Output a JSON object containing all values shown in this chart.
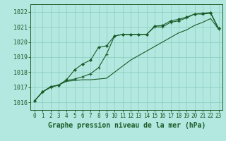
{
  "title": "Graphe pression niveau de la mer (hPa)",
  "bg_color": "#b3e8e0",
  "grid_color": "#88ccbb",
  "line_color": "#1a5c28",
  "xlim": [
    -0.5,
    23.5
  ],
  "ylim": [
    1015.5,
    1022.5
  ],
  "yticks": [
    1016,
    1017,
    1018,
    1019,
    1020,
    1021,
    1022
  ],
  "xticks": [
    0,
    1,
    2,
    3,
    4,
    5,
    6,
    7,
    8,
    9,
    10,
    11,
    12,
    13,
    14,
    15,
    16,
    17,
    18,
    19,
    20,
    21,
    22,
    23
  ],
  "line1_x": [
    0,
    1,
    2,
    3,
    4,
    5,
    6,
    7,
    8,
    9,
    10,
    11,
    12,
    13,
    14,
    15,
    16,
    17,
    18,
    19,
    20,
    21,
    22,
    23
  ],
  "line1_y": [
    1016.1,
    1016.7,
    1017.0,
    1017.15,
    1017.4,
    1017.45,
    1017.5,
    1017.5,
    1017.55,
    1017.6,
    1018.0,
    1018.4,
    1018.8,
    1019.1,
    1019.4,
    1019.7,
    1020.0,
    1020.3,
    1020.6,
    1020.8,
    1021.1,
    1021.3,
    1021.55,
    1020.85
  ],
  "line2_x": [
    0,
    1,
    2,
    3,
    4,
    5,
    6,
    7,
    8,
    9,
    10,
    11,
    12,
    13,
    14,
    15,
    16,
    17,
    18,
    19,
    20,
    21,
    22,
    23
  ],
  "line2_y": [
    1016.1,
    1016.7,
    1017.0,
    1017.15,
    1017.45,
    1017.55,
    1017.7,
    1017.9,
    1018.3,
    1019.2,
    1020.4,
    1020.5,
    1020.5,
    1020.5,
    1020.5,
    1021.0,
    1021.0,
    1021.3,
    1021.4,
    1021.6,
    1021.85,
    1021.85,
    1021.9,
    1020.85
  ],
  "line3_x": [
    0,
    1,
    2,
    3,
    4,
    5,
    6,
    7,
    8,
    9,
    10,
    11,
    12,
    13,
    14,
    15,
    16,
    17,
    18,
    19,
    20,
    21,
    22,
    23
  ],
  "line3_y": [
    1016.1,
    1016.7,
    1017.05,
    1017.15,
    1017.5,
    1018.15,
    1018.55,
    1018.8,
    1019.65,
    1019.75,
    1020.4,
    1020.5,
    1020.5,
    1020.5,
    1020.5,
    1021.05,
    1021.1,
    1021.4,
    1021.5,
    1021.65,
    1021.85,
    1021.9,
    1021.95,
    1020.9
  ],
  "title_fontsize": 7,
  "tick_fontsize": 5.5
}
